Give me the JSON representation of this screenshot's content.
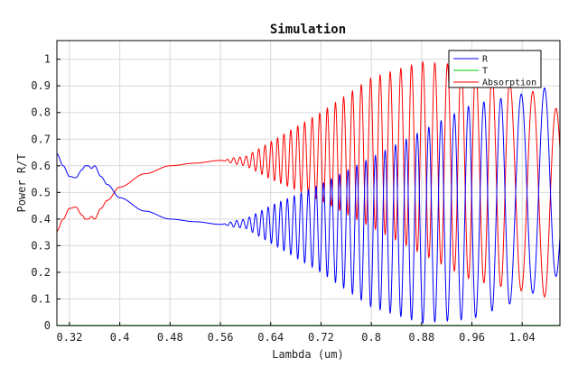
{
  "chart_data": {
    "type": "line",
    "title": "Simulation",
    "xlabel": "Lambda (um)",
    "ylabel": "Power R/T",
    "xlim": [
      0.3,
      1.1
    ],
    "ylim": [
      0,
      1.07
    ],
    "xticks": [
      0.32,
      0.4,
      0.48,
      0.56,
      0.64,
      0.72,
      0.8,
      0.88,
      0.96,
      1.04
    ],
    "yticks": [
      0,
      0.1,
      0.2,
      0.3,
      0.4,
      0.5,
      0.6,
      0.7,
      0.8,
      0.9,
      1
    ],
    "grid": true,
    "legend_position": "top-right",
    "series": [
      {
        "name": "R",
        "color": "#0000ff",
        "x": [
          0.3,
          0.31,
          0.32,
          0.33,
          0.34,
          0.345,
          0.35,
          0.355,
          0.36,
          0.37,
          0.38,
          0.4,
          0.44,
          0.48,
          0.52,
          0.56
        ],
        "y": [
          0.645,
          0.6,
          0.56,
          0.555,
          0.585,
          0.6,
          0.6,
          0.59,
          0.6,
          0.56,
          0.53,
          0.48,
          0.43,
          0.4,
          0.39,
          0.38
        ],
        "oscillation": {
          "x_start": 0.56,
          "x_end": 1.1,
          "upper_envelope": [
            [
              0.56,
              0.385
            ],
            [
              0.6,
              0.4
            ],
            [
              0.64,
              0.45
            ],
            [
              0.72,
              0.53
            ],
            [
              0.8,
              0.63
            ],
            [
              0.88,
              0.73
            ],
            [
              0.96,
              0.83
            ],
            [
              1.04,
              0.87
            ],
            [
              1.08,
              0.895
            ],
            [
              1.1,
              0.76
            ]
          ],
          "lower_envelope": [
            [
              0.56,
              0.375
            ],
            [
              0.6,
              0.365
            ],
            [
              0.64,
              0.31
            ],
            [
              0.72,
              0.2
            ],
            [
              0.8,
              0.07
            ],
            [
              0.88,
              0.01
            ],
            [
              0.96,
              0.025
            ],
            [
              1.04,
              0.1
            ],
            [
              1.08,
              0.15
            ],
            [
              1.1,
              0.2
            ]
          ],
          "minima_x": [
            0.581,
            0.591,
            0.601,
            0.611,
            0.621,
            0.631,
            0.641,
            0.651,
            0.661,
            0.672,
            0.683,
            0.694,
            0.706,
            0.718,
            0.73,
            0.743,
            0.756,
            0.77,
            0.784,
            0.799,
            0.814,
            0.83,
            0.847,
            0.864,
            0.882,
            0.901,
            0.921,
            0.943,
            0.966,
            0.992,
            1.02,
            1.057
          ]
        }
      },
      {
        "name": "T",
        "color": "#00cc00",
        "x": [
          0.3,
          1.1
        ],
        "y": [
          0,
          0
        ]
      },
      {
        "name": "Absorption",
        "color": "#ff0000",
        "rule": "1 - R - T"
      }
    ]
  }
}
